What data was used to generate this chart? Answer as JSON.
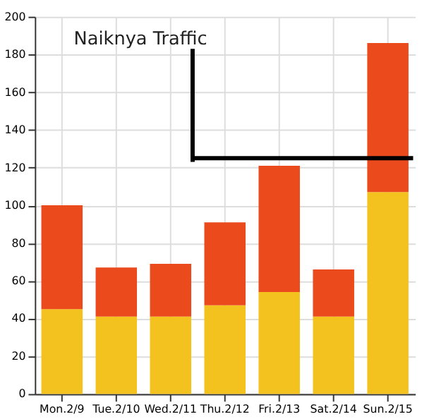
{
  "chart_data": {
    "type": "bar",
    "stacked": true,
    "title": "Naiknya  Traffic",
    "categories": [
      "Mon.2/9",
      "Tue.2/10",
      "Wed.2/11",
      "Thu.2/12",
      "Fri.2/13",
      "Sat.2/14",
      "Sun.2/15"
    ],
    "series": [
      {
        "color": "#f4c21e",
        "values": [
          45,
          41,
          41,
          47,
          54,
          41,
          107
        ]
      },
      {
        "color": "#ea4a1c",
        "values": [
          55,
          26,
          28,
          44,
          67,
          25,
          79
        ]
      }
    ],
    "ylim": [
      0,
      200
    ],
    "yticks": [
      0,
      20,
      40,
      60,
      80,
      100,
      120,
      140,
      160,
      180,
      200
    ],
    "grid": true,
    "ref_lines": [
      {
        "axis": "y",
        "value": 125,
        "color": "#000000"
      }
    ]
  }
}
